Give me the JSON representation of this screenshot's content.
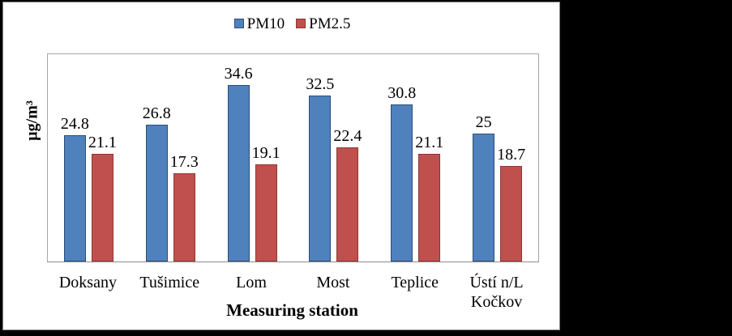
{
  "page": {
    "background_color": "#000000",
    "chart_background": "#FFFFFF",
    "frame_border_color": "#7F7F7F",
    "plot_border_color": "#A6A6A6"
  },
  "chart_data": {
    "type": "bar",
    "title": "",
    "categories": [
      "Doksany",
      "Tušimice",
      "Lom",
      "Most",
      "Teplice",
      "Ústí n/L Kočkov"
    ],
    "series": [
      {
        "name": "PM10",
        "values": [
          24.8,
          26.8,
          34.6,
          32.5,
          30.8,
          25
        ],
        "fill": "#4F81BD",
        "border": "#2C4D75"
      },
      {
        "name": "PM2.5",
        "values": [
          21.1,
          17.3,
          19.1,
          22.4,
          21.1,
          18.7
        ],
        "fill": "#C0504D",
        "border": "#8C3836"
      }
    ],
    "xlabel": "Measuring station",
    "ylabel": "µg/m³",
    "ylim": [
      0,
      40
    ],
    "y_tick_labels_visible": false,
    "gridlines": false,
    "legend_position": "top-center",
    "data_labels": true
  }
}
